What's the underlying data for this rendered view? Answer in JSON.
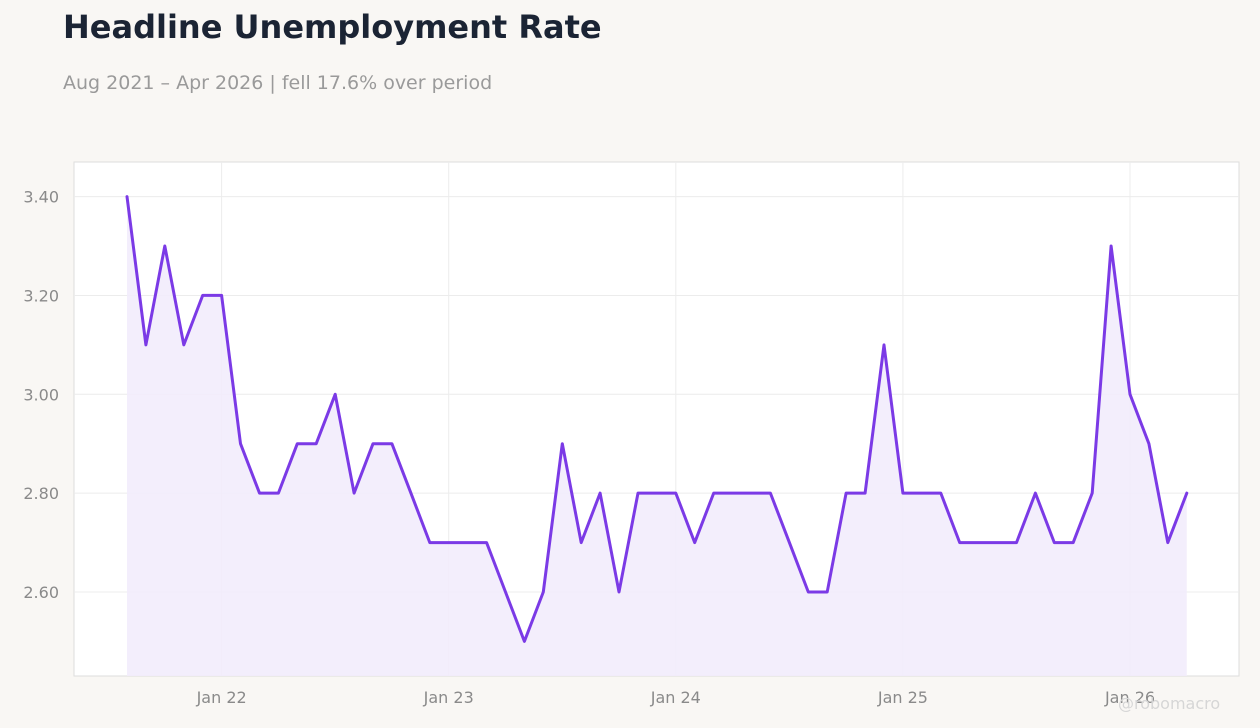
{
  "title": "Headline Unemployment Rate",
  "subtitle": "Aug 2021 – Apr 2026 | fell 17.6% over period",
  "watermark": "@robomacro",
  "colors": {
    "line": "#7b3ae6",
    "fill": "#f2ecfc",
    "grid": "#ececec",
    "axis_text": "#8a8a8a",
    "title": "#1b2434",
    "subtitle": "#9a9a9a",
    "background": "#f9f7f4",
    "plot_background": "#ffffff"
  },
  "chart_data": {
    "type": "area",
    "x_start": "2021-08",
    "x_end": "2026-04",
    "x_ticks": [
      "Jan 22",
      "Jan 23",
      "Jan 24",
      "Jan 25",
      "Jan 26"
    ],
    "y_ticks": [
      "3.40",
      "3.20",
      "3.00",
      "2.80",
      "2.60"
    ],
    "ylim": [
      2.43,
      3.47
    ],
    "grid": true,
    "series": [
      {
        "x": [
          "2021-08",
          "2021-09",
          "2021-10",
          "2021-11",
          "2021-12",
          "2022-01",
          "2022-02",
          "2022-03",
          "2022-04",
          "2022-05",
          "2022-06",
          "2022-07",
          "2022-08",
          "2022-09",
          "2022-10",
          "2022-11",
          "2022-12",
          "2023-01",
          "2023-02",
          "2023-03",
          "2023-04",
          "2023-05",
          "2023-06",
          "2023-07",
          "2023-08",
          "2023-09",
          "2023-10",
          "2023-11",
          "2023-12",
          "2024-01",
          "2024-02",
          "2024-03",
          "2024-04",
          "2024-05",
          "2024-06",
          "2024-07",
          "2024-08",
          "2024-09",
          "2024-10",
          "2024-11",
          "2024-12",
          "2025-01",
          "2025-02",
          "2025-03",
          "2025-04",
          "2025-05",
          "2025-06",
          "2025-07",
          "2025-08",
          "2025-09",
          "2025-10",
          "2025-11",
          "2025-12",
          "2026-01",
          "2026-02",
          "2026-03",
          "2026-04"
        ],
        "values": [
          3.4,
          3.1,
          3.3,
          3.1,
          3.2,
          3.2,
          2.9,
          2.8,
          2.8,
          2.9,
          2.9,
          3.0,
          2.8,
          2.9,
          2.9,
          2.8,
          2.7,
          2.7,
          2.7,
          2.7,
          2.6,
          2.5,
          2.6,
          2.9,
          2.7,
          2.8,
          2.6,
          2.8,
          2.8,
          2.8,
          2.7,
          2.8,
          2.8,
          2.8,
          2.8,
          2.7,
          2.6,
          2.6,
          2.8,
          2.8,
          3.1,
          2.8,
          2.8,
          2.8,
          2.7,
          2.7,
          2.7,
          2.7,
          2.8,
          2.7,
          2.7,
          2.8,
          3.3,
          3.0,
          2.9,
          2.7,
          2.8
        ]
      }
    ]
  }
}
